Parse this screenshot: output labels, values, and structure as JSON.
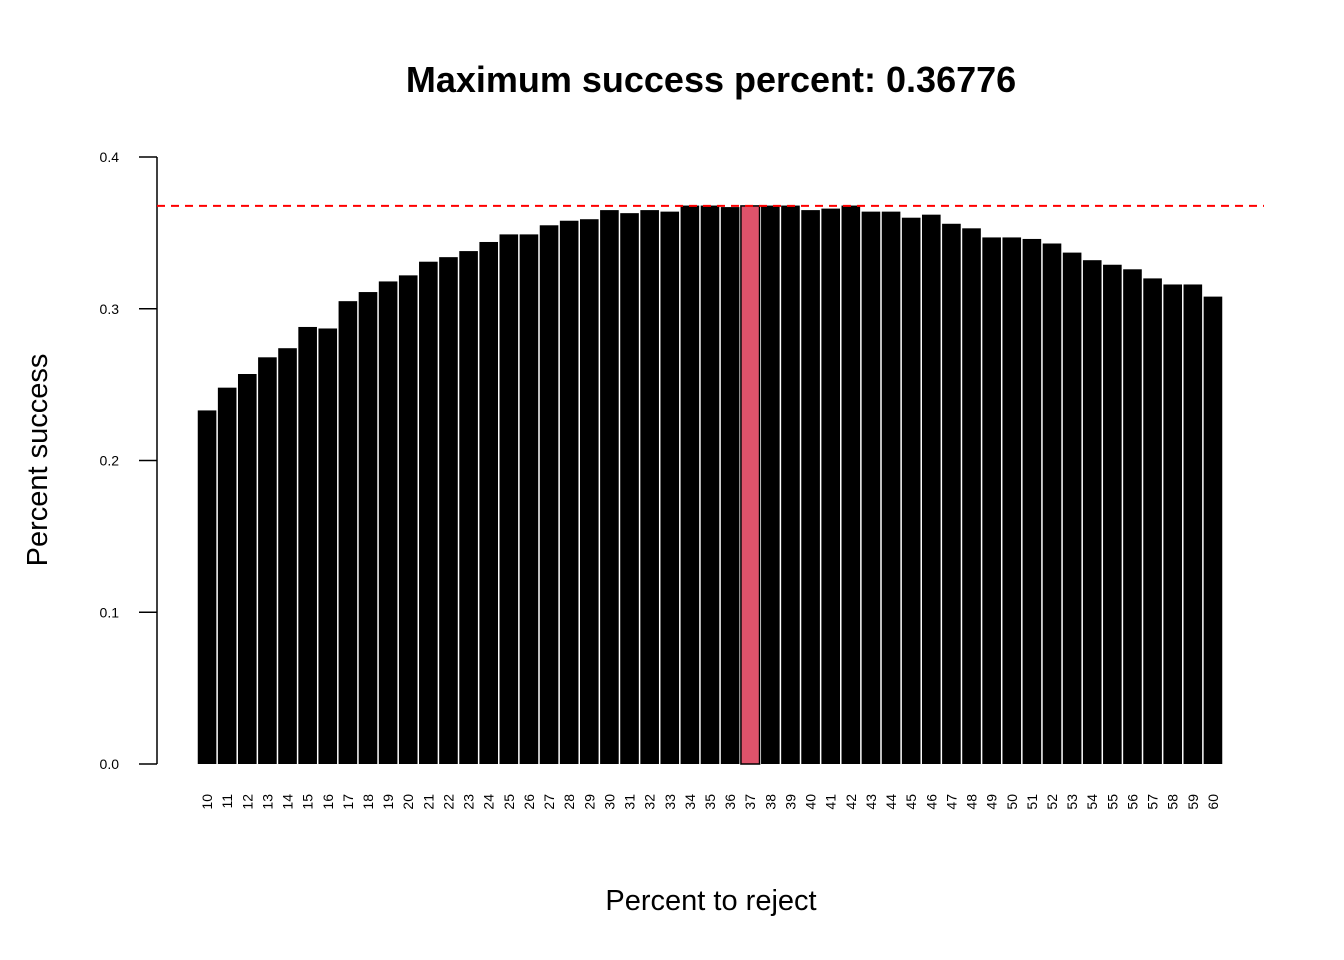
{
  "chart_data": {
    "type": "bar",
    "title": "Maximum success percent: 0.36776",
    "xlabel": "Percent to reject",
    "ylabel": "Percent success",
    "ylim": [
      0,
      0.4
    ],
    "yticks": [
      "0.0",
      "0.1",
      "0.2",
      "0.3",
      "0.4"
    ],
    "ytick_values": [
      0,
      0.1,
      0.2,
      0.3,
      0.4
    ],
    "categories": [
      "10",
      "11",
      "12",
      "13",
      "14",
      "15",
      "16",
      "17",
      "18",
      "19",
      "20",
      "21",
      "22",
      "23",
      "24",
      "25",
      "26",
      "27",
      "28",
      "29",
      "30",
      "31",
      "32",
      "33",
      "34",
      "35",
      "36",
      "37",
      "38",
      "39",
      "40",
      "41",
      "42",
      "43",
      "44",
      "45",
      "46",
      "47",
      "48",
      "49",
      "50",
      "51",
      "52",
      "53",
      "54",
      "55",
      "56",
      "57",
      "58",
      "59",
      "60"
    ],
    "values": [
      0.233,
      0.248,
      0.257,
      0.268,
      0.274,
      0.288,
      0.287,
      0.305,
      0.311,
      0.318,
      0.322,
      0.331,
      0.334,
      0.338,
      0.344,
      0.349,
      0.349,
      0.355,
      0.358,
      0.359,
      0.365,
      0.363,
      0.365,
      0.364,
      0.368,
      0.368,
      0.367,
      0.36776,
      0.368,
      0.368,
      0.365,
      0.366,
      0.368,
      0.364,
      0.364,
      0.36,
      0.362,
      0.356,
      0.353,
      0.347,
      0.347,
      0.346,
      0.343,
      0.337,
      0.332,
      0.329,
      0.326,
      0.32,
      0.316,
      0.316,
      0.308
    ],
    "highlight_category": "37",
    "reference_line": 0.36776,
    "colors": {
      "bar": "#000000",
      "bar_border": "#ffffff",
      "highlight": "#df536b",
      "reference_line": "#ff0000"
    },
    "grid": false,
    "legend": "none"
  }
}
